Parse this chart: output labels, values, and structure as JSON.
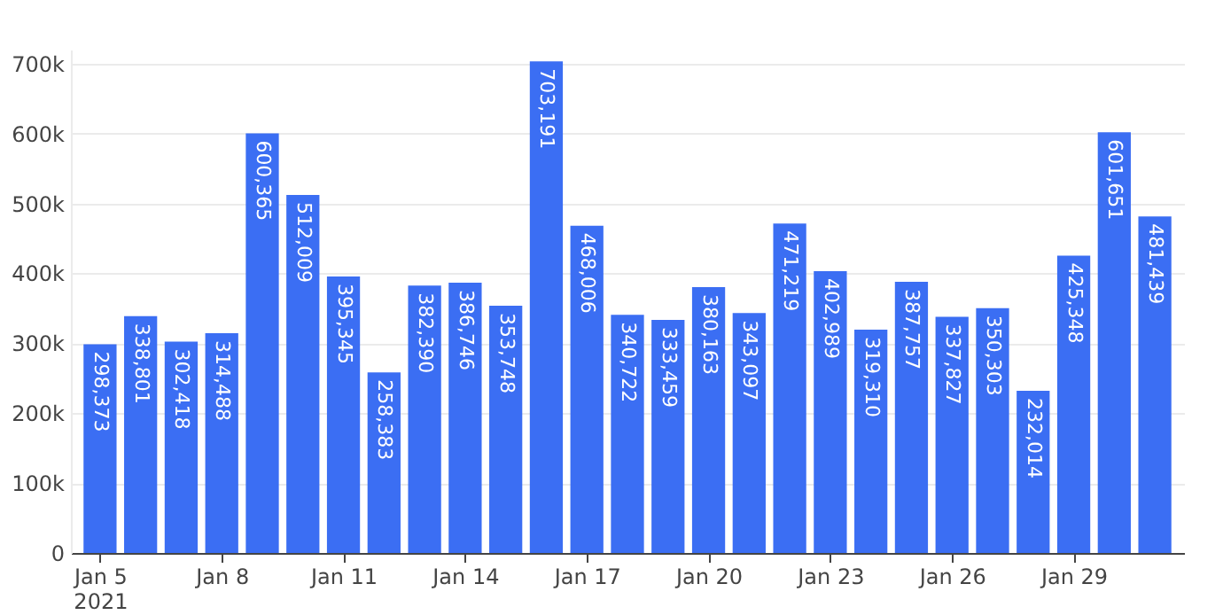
{
  "chart_data": {
    "type": "bar",
    "x": [
      "2021-01-05",
      "2021-01-06",
      "2021-01-07",
      "2021-01-08",
      "2021-01-09",
      "2021-01-10",
      "2021-01-11",
      "2021-01-12",
      "2021-01-13",
      "2021-01-14",
      "2021-01-15",
      "2021-01-16",
      "2021-01-17",
      "2021-01-18",
      "2021-01-19",
      "2021-01-20",
      "2021-01-21",
      "2021-01-22",
      "2021-01-23",
      "2021-01-24",
      "2021-01-25",
      "2021-01-26",
      "2021-01-27",
      "2021-01-28",
      "2021-01-29",
      "2021-01-30",
      "2021-01-31"
    ],
    "values": [
      298373,
      338801,
      302418,
      314488,
      600365,
      512009,
      395345,
      258383,
      382390,
      386746,
      353748,
      703191,
      468006,
      340722,
      333459,
      380163,
      343097,
      471219,
      402989,
      319310,
      387757,
      337827,
      350303,
      232014,
      425348,
      601651,
      481439
    ],
    "color": "#3b6ef3",
    "value_labels": [
      "298,373",
      "338,801",
      "302,418",
      "314,488",
      "600,365",
      "512,009",
      "395,345",
      "258,383",
      "382,390",
      "386,746",
      "353,748",
      "703,191",
      "468,006",
      "340,722",
      "333,459",
      "380,163",
      "343,097",
      "471,219",
      "402,989",
      "319,310",
      "387,757",
      "337,827",
      "350,303",
      "232,014",
      "425,348",
      "601,651",
      "481,439"
    ],
    "xlim": [
      "2021-01-04T12:00",
      "2021-01-31T12:00"
    ],
    "xticks": [
      {
        "value": "2021-01-05",
        "label": "Jan 5\n2021"
      },
      {
        "value": "2021-01-08",
        "label": "Jan 8"
      },
      {
        "value": "2021-01-11",
        "label": "Jan 11"
      },
      {
        "value": "2021-01-14",
        "label": "Jan 14"
      },
      {
        "value": "2021-01-17",
        "label": "Jan 17"
      },
      {
        "value": "2021-01-20",
        "label": "Jan 20"
      },
      {
        "value": "2021-01-23",
        "label": "Jan 23"
      },
      {
        "value": "2021-01-26",
        "label": "Jan 26"
      },
      {
        "value": "2021-01-29",
        "label": "Jan 29"
      }
    ],
    "ylim": [
      0,
      720000
    ],
    "yticks": [
      0,
      {
        "value": 100000,
        "label": "100k"
      },
      {
        "value": 200000,
        "label": "200k"
      },
      {
        "value": 300000,
        "label": "300k"
      },
      {
        "value": 400000,
        "label": "400k"
      },
      {
        "value": 500000,
        "label": "500k"
      },
      {
        "value": 600000,
        "label": "600k"
      },
      {
        "value": 700000,
        "label": "700k"
      }
    ],
    "grid": "y"
  }
}
